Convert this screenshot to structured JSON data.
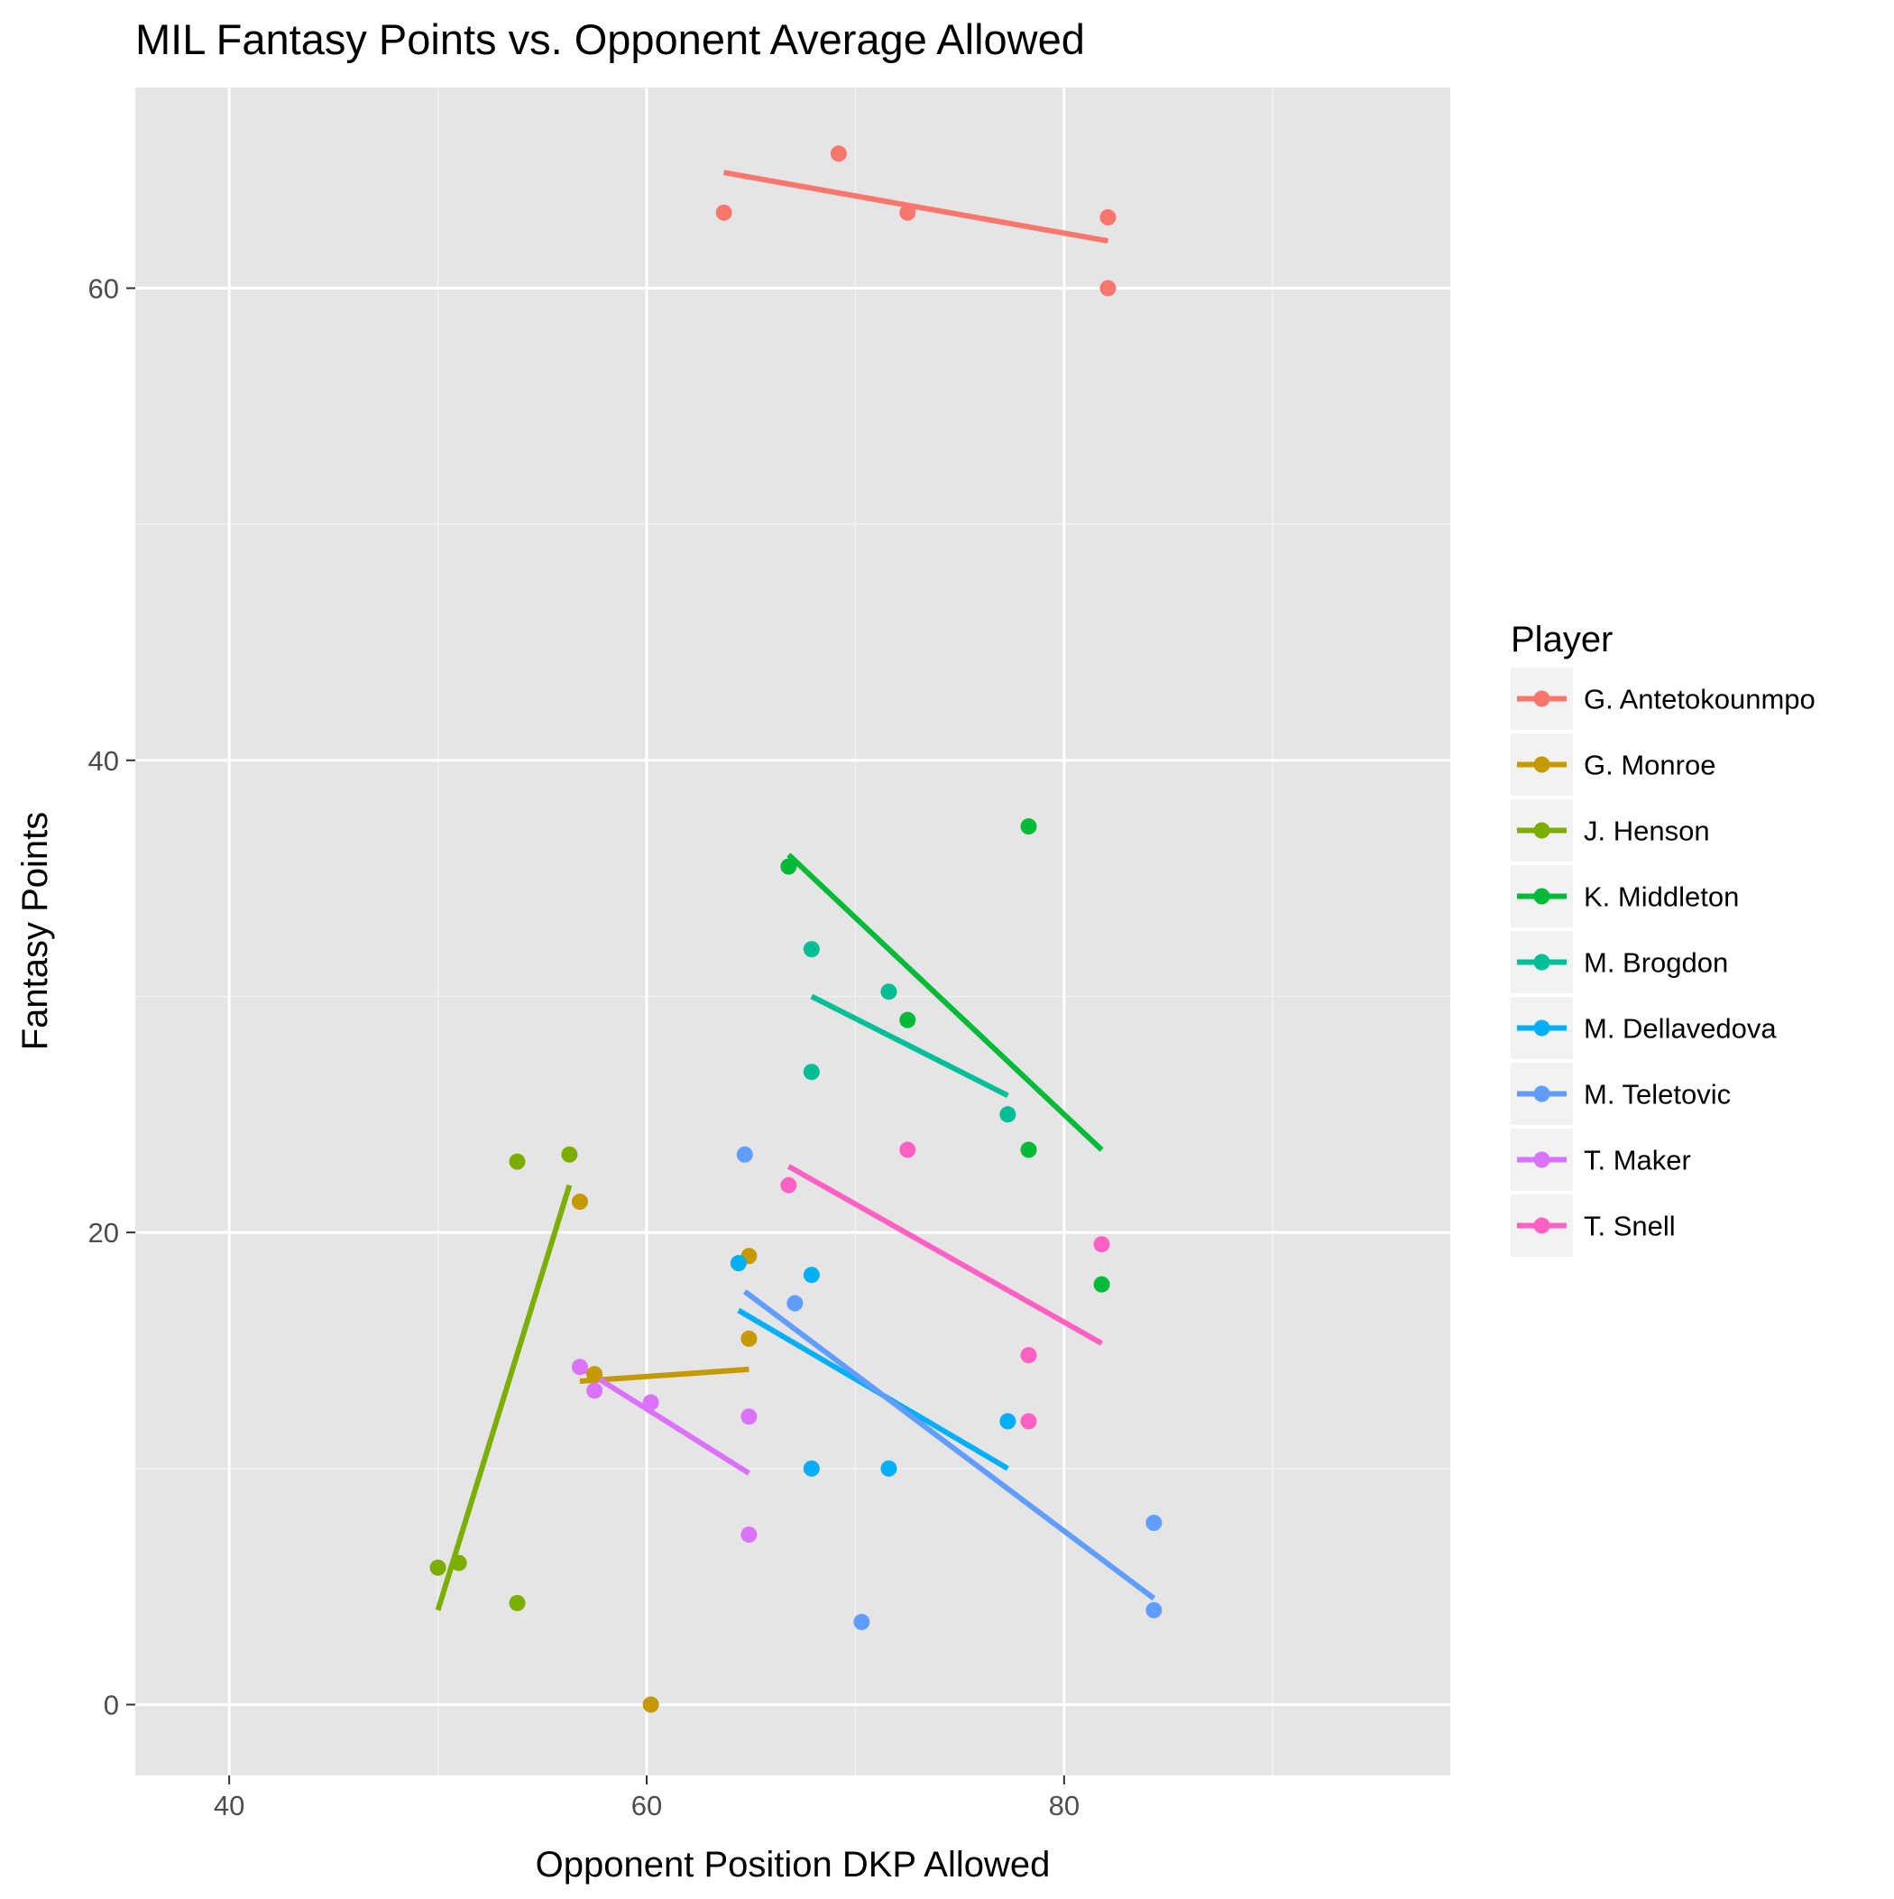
{
  "chart_data": {
    "type": "scatter",
    "title": "MIL Fantasy Points vs. Opponent Average Allowed",
    "xlabel": "Opponent Position DKP Allowed",
    "ylabel": "Fantasy Points",
    "xlim": [
      35.5,
      98.5
    ],
    "ylim": [
      -3,
      68.5
    ],
    "x_ticks": [
      40,
      60,
      80
    ],
    "y_ticks": [
      0,
      20,
      40,
      60
    ],
    "x_minor_ticks": [
      50,
      70,
      90
    ],
    "y_minor_ticks": [
      10,
      30,
      50
    ],
    "grid": true,
    "legend": {
      "title": "Player",
      "placement": "right"
    },
    "series": [
      {
        "name": "G. Antetokounmpo",
        "color": "#F8766D",
        "points": [
          [
            63.7,
            63.2
          ],
          [
            69.2,
            65.7
          ],
          [
            72.5,
            63.2
          ],
          [
            82.1,
            63.0
          ],
          [
            82.1,
            60.0
          ]
        ],
        "fit": [
          [
            63.7,
            64.9
          ],
          [
            82.1,
            62.0
          ]
        ]
      },
      {
        "name": "G. Monroe",
        "color": "#C49A00",
        "points": [
          [
            56.8,
            21.3
          ],
          [
            57.5,
            14.0
          ],
          [
            64.9,
            19.0
          ],
          [
            64.9,
            15.5
          ],
          [
            60.2,
            0.0
          ]
        ],
        "fit": [
          [
            56.8,
            13.7
          ],
          [
            64.9,
            14.2
          ]
        ]
      },
      {
        "name": "J. Henson",
        "color": "#7CAE00",
        "points": [
          [
            53.8,
            23.0
          ],
          [
            56.3,
            23.3
          ],
          [
            50.0,
            5.8
          ],
          [
            51.0,
            6.0
          ],
          [
            53.8,
            4.3
          ]
        ],
        "fit": [
          [
            50.0,
            4.0
          ],
          [
            56.3,
            22.0
          ]
        ]
      },
      {
        "name": "K. Middleton",
        "color": "#00BA38",
        "points": [
          [
            66.8,
            35.5
          ],
          [
            78.3,
            37.2
          ],
          [
            72.5,
            29.0
          ],
          [
            78.3,
            23.5
          ],
          [
            81.8,
            17.8
          ]
        ],
        "fit": [
          [
            66.8,
            36.0
          ],
          [
            81.8,
            23.5
          ]
        ]
      },
      {
        "name": "M. Brogdon",
        "color": "#00BF96",
        "points": [
          [
            67.9,
            32.0
          ],
          [
            71.6,
            30.2
          ],
          [
            67.9,
            26.8
          ],
          [
            77.3,
            25.0
          ]
        ],
        "fit": [
          [
            67.9,
            30.0
          ],
          [
            77.3,
            25.8
          ]
        ]
      },
      {
        "name": "M. Dellavedova",
        "color": "#00B0F6",
        "points": [
          [
            64.4,
            18.7
          ],
          [
            67.9,
            18.2
          ],
          [
            77.3,
            12.0
          ],
          [
            67.9,
            10.0
          ],
          [
            71.6,
            10.0
          ]
        ],
        "fit": [
          [
            64.4,
            16.7
          ],
          [
            77.3,
            10.0
          ]
        ]
      },
      {
        "name": "M. Teletovic",
        "color": "#619CFF",
        "points": [
          [
            64.7,
            23.3
          ],
          [
            67.1,
            17.0
          ],
          [
            84.3,
            7.7
          ],
          [
            84.3,
            4.0
          ],
          [
            70.3,
            3.5
          ]
        ],
        "fit": [
          [
            64.7,
            17.5
          ],
          [
            84.3,
            4.5
          ]
        ]
      },
      {
        "name": "T. Maker",
        "color": "#DB72FB",
        "points": [
          [
            56.8,
            14.3
          ],
          [
            57.5,
            13.3
          ],
          [
            60.2,
            12.8
          ],
          [
            64.9,
            12.2
          ],
          [
            64.9,
            7.2
          ]
        ],
        "fit": [
          [
            56.8,
            14.3
          ],
          [
            64.9,
            9.8
          ]
        ]
      },
      {
        "name": "T. Snell",
        "color": "#FF61C3",
        "points": [
          [
            66.8,
            22.0
          ],
          [
            72.5,
            23.5
          ],
          [
            81.8,
            19.5
          ],
          [
            78.3,
            14.8
          ],
          [
            78.3,
            12.0
          ]
        ],
        "fit": [
          [
            66.8,
            22.8
          ],
          [
            81.8,
            15.3
          ]
        ]
      }
    ]
  }
}
